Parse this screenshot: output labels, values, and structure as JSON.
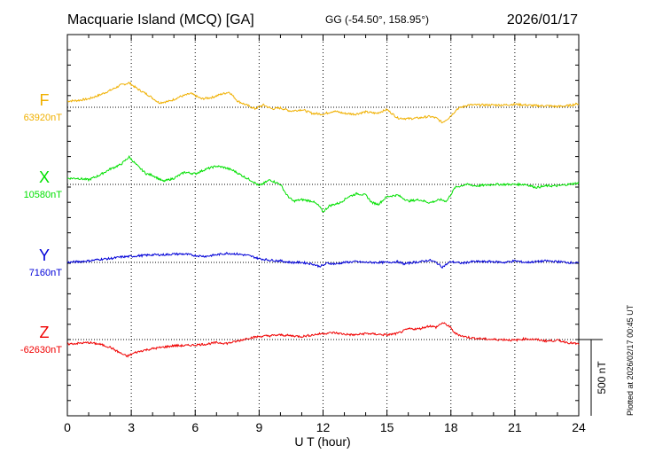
{
  "header": {
    "station": "Macquarie Island (MCQ)  [GA]",
    "coords": "GG (-54.50°, 158.95°)",
    "date": "2026/01/17"
  },
  "plotted_note": "Plotted at 2026/02/17 00:45 UT",
  "colors": {
    "F": "#f0b000",
    "X": "#00e000",
    "Y": "#0000d8",
    "Z": "#f00000"
  },
  "chart_data": {
    "type": "line",
    "title": "Macquarie Island (MCQ)  [GA]",
    "xlabel": "U T (hour)",
    "ylabel": "",
    "xlim": [
      0,
      24
    ],
    "xticks": [
      "0",
      "3",
      "6",
      "9",
      "12",
      "15",
      "18",
      "21",
      "24"
    ],
    "grid": true,
    "scale_bar": {
      "label": "500 nT",
      "value_nT": 500
    },
    "series": [
      {
        "name": "F",
        "baseline_label": "63920nT",
        "baseline_nT": 63920,
        "x": [
          0,
          0.5,
          1,
          1.5,
          2,
          2.5,
          2.9,
          3.3,
          3.8,
          4.3,
          4.8,
          5.3,
          5.8,
          6.3,
          6.8,
          7.2,
          7.6,
          8,
          8.4,
          8.8,
          9.2,
          9.6,
          10,
          10.5,
          11,
          11.5,
          12,
          12.5,
          13,
          13.5,
          14,
          14.5,
          15,
          15.5,
          16,
          16.5,
          17,
          17.3,
          17.6,
          17.9,
          18.3,
          18.8,
          19.5,
          20,
          20.5,
          21,
          21.5,
          22,
          22.5,
          23,
          23.5,
          24
        ],
        "values": [
          63960,
          63965,
          63975,
          64000,
          64030,
          64065,
          64080,
          64040,
          64000,
          63950,
          63960,
          63990,
          64010,
          63975,
          63985,
          64005,
          64020,
          63960,
          63935,
          63910,
          63935,
          63910,
          63915,
          63895,
          63905,
          63880,
          63875,
          63895,
          63880,
          63875,
          63890,
          63880,
          63905,
          63850,
          63845,
          63850,
          63860,
          63850,
          63820,
          63850,
          63910,
          63935,
          63935,
          63935,
          63935,
          63940,
          63935,
          63930,
          63930,
          63925,
          63930,
          63945
        ]
      },
      {
        "name": "X",
        "baseline_label": "10580nT",
        "baseline_nT": 10580,
        "x": [
          0,
          0.5,
          1,
          1.5,
          2,
          2.5,
          2.9,
          3.3,
          3.7,
          4,
          4.5,
          5,
          5.5,
          6,
          6.5,
          7,
          7.4,
          7.8,
          8.3,
          8.7,
          9,
          9.5,
          10,
          10.3,
          10.6,
          11,
          11.5,
          11.8,
          12,
          12.3,
          12.8,
          13.2,
          13.6,
          14,
          14.3,
          14.6,
          15,
          15.5,
          16,
          16.5,
          17,
          17.5,
          17.8,
          18.2,
          18.7,
          19.2,
          20,
          21,
          21.5,
          22,
          22.5,
          23,
          23.5,
          24
        ],
        "values": [
          10620,
          10620,
          10610,
          10640,
          10680,
          10710,
          10760,
          10700,
          10650,
          10640,
          10600,
          10620,
          10660,
          10650,
          10680,
          10700,
          10690,
          10670,
          10630,
          10600,
          10570,
          10610,
          10580,
          10510,
          10470,
          10480,
          10470,
          10440,
          10400,
          10440,
          10460,
          10500,
          10520,
          10510,
          10460,
          10450,
          10500,
          10510,
          10470,
          10480,
          10460,
          10480,
          10470,
          10560,
          10580,
          10570,
          10580,
          10580,
          10580,
          10560,
          10570,
          10570,
          10580,
          10590
        ]
      },
      {
        "name": "Y",
        "baseline_label": "7160nT",
        "baseline_nT": 7160,
        "x": [
          0,
          0.5,
          1,
          1.5,
          2,
          2.5,
          3,
          3.5,
          4,
          4.5,
          5,
          5.5,
          6,
          6.5,
          7,
          7.5,
          8,
          8.5,
          9,
          9.5,
          10,
          10.5,
          11,
          11.5,
          11.8,
          12,
          12.2,
          12.6,
          13,
          13.5,
          14,
          14.5,
          15,
          15.5,
          15.8,
          16.2,
          16.6,
          17,
          17.3,
          17.6,
          18,
          18.5,
          19,
          19.5,
          20,
          20.5,
          21,
          21.5,
          22,
          22.5,
          23,
          23.5,
          24
        ],
        "values": [
          7160,
          7165,
          7170,
          7180,
          7185,
          7195,
          7200,
          7205,
          7210,
          7210,
          7215,
          7215,
          7205,
          7200,
          7210,
          7220,
          7215,
          7205,
          7185,
          7175,
          7170,
          7160,
          7160,
          7150,
          7135,
          7140,
          7155,
          7150,
          7160,
          7165,
          7160,
          7160,
          7160,
          7165,
          7150,
          7160,
          7165,
          7175,
          7160,
          7130,
          7165,
          7155,
          7165,
          7165,
          7165,
          7160,
          7170,
          7160,
          7165,
          7170,
          7165,
          7160,
          7155
        ]
      },
      {
        "name": "Z",
        "baseline_label": "-62630nT",
        "baseline_nT": -62630,
        "x": [
          0,
          0.5,
          1,
          1.5,
          2,
          2.5,
          2.8,
          3.2,
          3.6,
          4,
          4.5,
          5,
          5.5,
          6,
          6.5,
          7,
          7.5,
          8,
          8.5,
          9,
          9.5,
          10,
          10.5,
          11,
          11.5,
          12,
          12.5,
          13,
          13.5,
          14,
          14.5,
          15,
          15.5,
          16,
          16.5,
          17,
          17.3,
          17.6,
          17.9,
          18.2,
          18.6,
          19,
          19.5,
          20,
          20.5,
          21,
          21.5,
          22,
          22.5,
          23,
          23.5,
          24
        ],
        "values": [
          -62660,
          -62655,
          -62650,
          -62660,
          -62680,
          -62720,
          -62740,
          -62715,
          -62700,
          -62690,
          -62680,
          -62670,
          -62670,
          -62665,
          -62660,
          -62650,
          -62655,
          -62640,
          -62620,
          -62610,
          -62605,
          -62600,
          -62605,
          -62610,
          -62600,
          -62590,
          -62585,
          -62595,
          -62600,
          -62590,
          -62595,
          -62600,
          -62590,
          -62560,
          -62560,
          -62540,
          -62550,
          -62520,
          -62540,
          -62590,
          -62610,
          -62620,
          -62625,
          -62630,
          -62630,
          -62635,
          -62625,
          -62630,
          -62640,
          -62635,
          -62650,
          -62660
        ]
      }
    ]
  }
}
